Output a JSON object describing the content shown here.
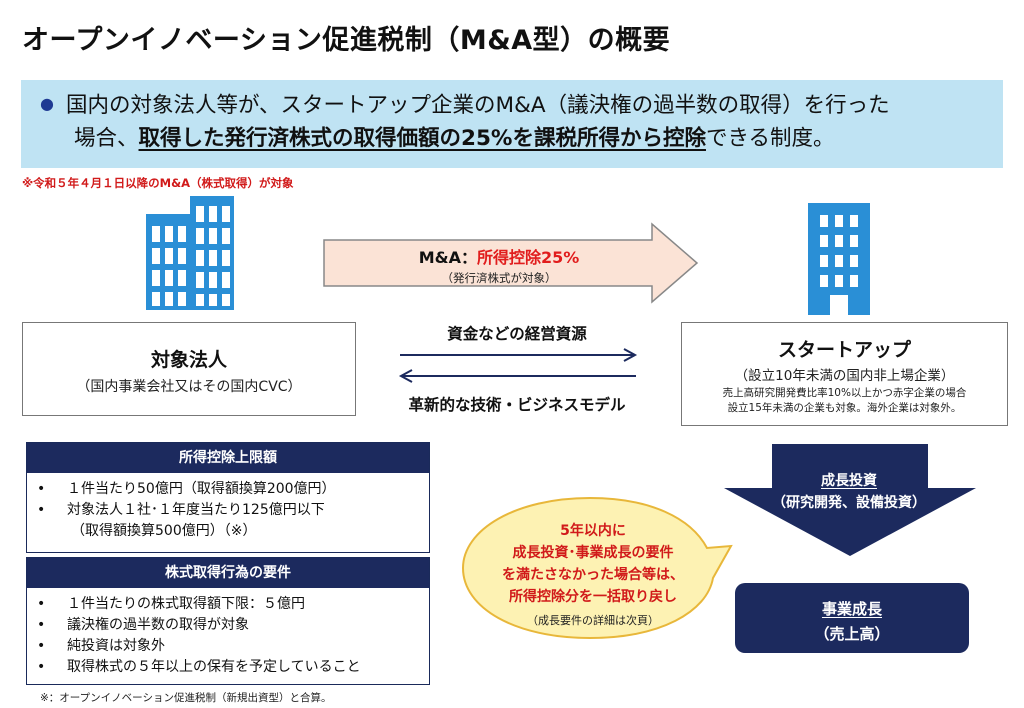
{
  "title": "オープンイノベーション促進税制（M&A型）の概要",
  "intro": {
    "line1": "国内の対象法人等が、スタートアップ企業のM&A（議決権の過半数の取得）を行った",
    "line2_a": "場合、",
    "line2_bold": "取得した発行済株式の取得価額の25%を課税所得から控除",
    "line2_b": "できる制度。"
  },
  "note_red": "※令和５年４月１日以降のM&A（株式取得）が対象",
  "arrow": {
    "label_a": "M&A：",
    "label_red": "所得控除25%",
    "sub": "（発行済株式が対象）"
  },
  "flows": {
    "top": "資金などの経営資源",
    "bottom": "革新的な技術・ビジネスモデル"
  },
  "left_entity": {
    "title": "対象法人",
    "sub": "（国内事業会社又はその国内CVC）"
  },
  "right_entity": {
    "title": "スタートアップ",
    "sub": "（設立10年未満の国内非上場企業）",
    "note1": "売上高研究開発費比率10%以上かつ赤字企業の場合",
    "note2": "設立15年未満の企業も対象。海外企業は対象外。"
  },
  "panel1": {
    "head": "所得控除上限額",
    "items": [
      "１件当たり50億円（取得額換算200億円）",
      "対象法人１社･１年度当たり125億円以下"
    ],
    "cont": "（取得額換算500億円）（※）"
  },
  "panel2": {
    "head": "株式取得行為の要件",
    "items": [
      "１件当たりの株式取得額下限：５億円",
      "議決権の過半数の取得が対象",
      "純投資は対象外",
      "取得株式の５年以上の保有を予定していること"
    ]
  },
  "footnote": "※：オープンイノベーション促進税制（新規出資型）と合算。",
  "growth_investment": {
    "l1": "成長投資",
    "l2": "（研究開発、設備投資）"
  },
  "business_growth": {
    "l1": "事業成長",
    "l2": "（売上高）"
  },
  "bubble": {
    "l1": "5年以内に",
    "l2": "成長投資･事業成長の要件",
    "l3": "を満たさなかった場合等は、",
    "l4": "所得控除分を一括取り戻し",
    "sub": "（成長要件の詳細は次頁）"
  },
  "colors": {
    "navy": "#1c2a5e",
    "band": "#bfe3f3",
    "red": "#e11d1d",
    "bubble": "#fdf2b3",
    "arrow_fill": "#fbe3d6",
    "building": "#2a8fd6"
  },
  "icons": [
    "building-icon",
    "office-tower-icon"
  ]
}
